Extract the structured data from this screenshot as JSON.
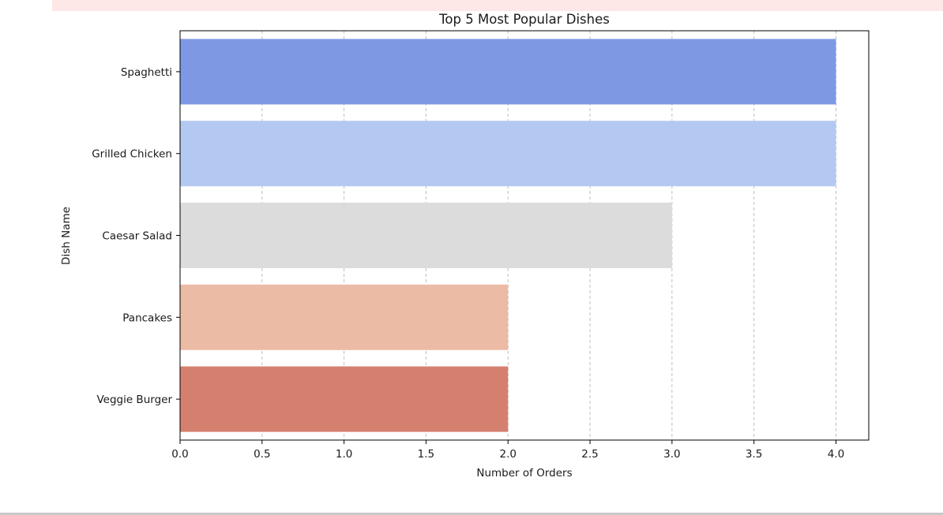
{
  "chart_data": {
    "type": "bar",
    "orientation": "horizontal",
    "title": "Top 5 Most Popular Dishes",
    "xlabel": "Number of Orders",
    "ylabel": "Dish Name",
    "categories": [
      "Spaghetti",
      "Grilled Chicken",
      "Caesar Salad",
      "Pancakes",
      "Veggie Burger"
    ],
    "values": [
      4,
      4,
      3,
      2,
      2
    ],
    "colors": [
      "#7f98e3",
      "#b4c9f2",
      "#dcdcdc",
      "#ecbba6",
      "#d5806e"
    ],
    "xlim": [
      0,
      4.2
    ],
    "xticks": [
      0.0,
      0.5,
      1.0,
      1.5,
      2.0,
      2.5,
      3.0,
      3.5,
      4.0
    ],
    "xtick_labels": [
      "0.0",
      "0.5",
      "1.0",
      "1.5",
      "2.0",
      "2.5",
      "3.0",
      "3.5",
      "4.0"
    ],
    "grid": "x-dashed"
  }
}
